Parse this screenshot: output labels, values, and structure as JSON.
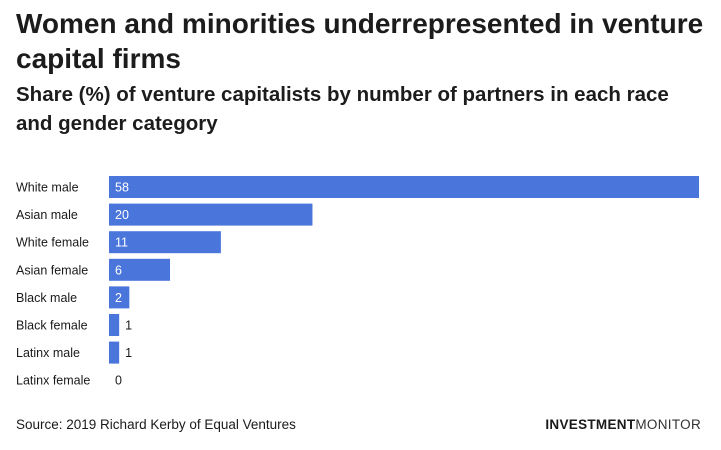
{
  "header": {
    "title": "Women and minorities underrepresented in venture capital firms",
    "subtitle": "Share (%) of venture capitalists by number of partners in each race and gender category"
  },
  "footer": {
    "source": "Source: 2019 Richard Kerby of Equal Ventures",
    "brand_bold": "INVESTMENT",
    "brand_light": "MONITOR"
  },
  "colors": {
    "bar": "#4a76dc"
  },
  "chart_data": {
    "type": "bar",
    "orientation": "horizontal",
    "categories": [
      "White male",
      "Asian male",
      "White female",
      "Asian female",
      "Black male",
      "Black female",
      "Latinx male",
      "Latinx female"
    ],
    "values": [
      58,
      20,
      11,
      6,
      2,
      1,
      1,
      0
    ],
    "title": "Women and minorities underrepresented in venture capital firms",
    "subtitle": "Share (%) of venture capitalists by number of partners in each race and gender category",
    "xlabel": "",
    "ylabel": "",
    "xlim": [
      0,
      58
    ],
    "grid": false,
    "legend": "none",
    "data_labels": true
  }
}
